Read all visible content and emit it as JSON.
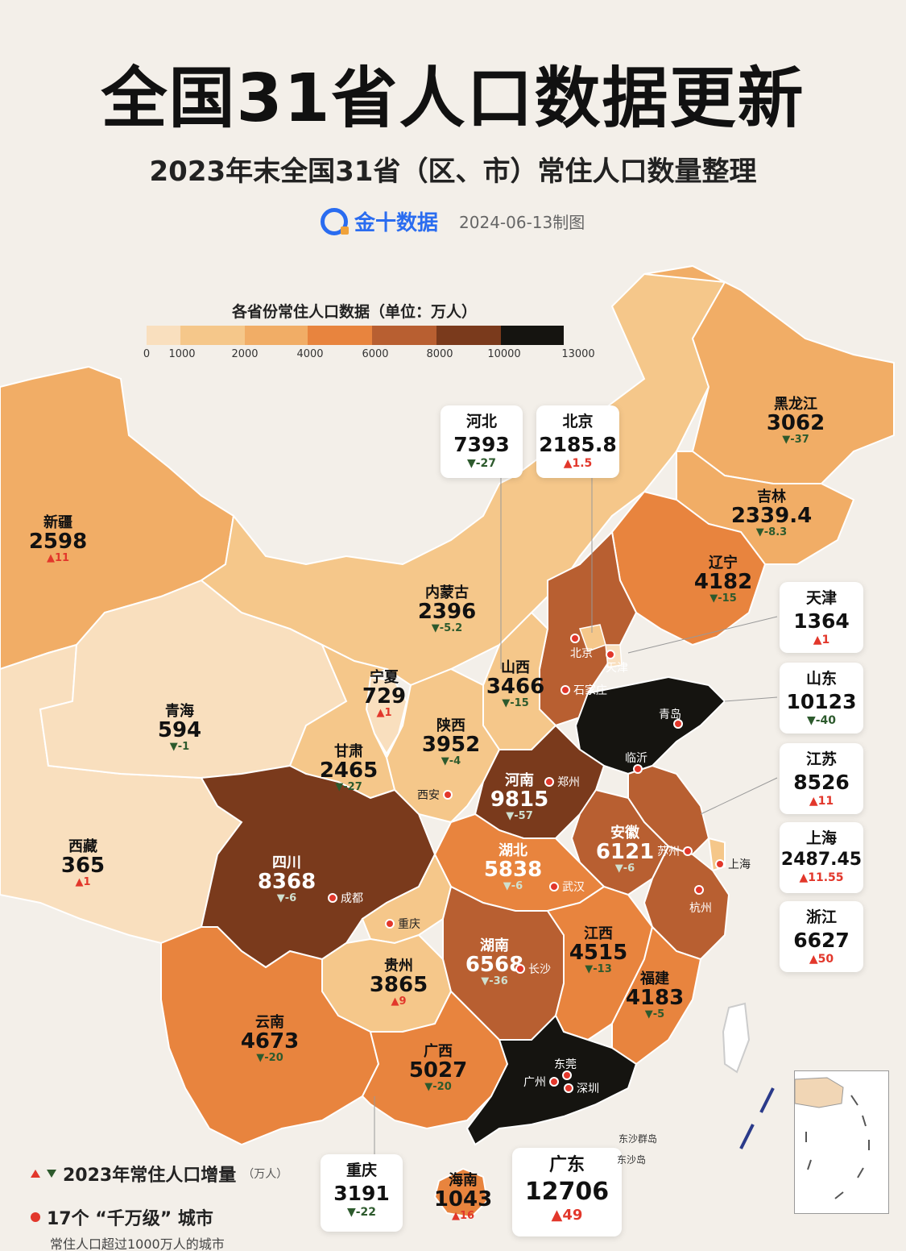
{
  "title": "全国31省人口数据更新",
  "subtitle": "2023年末全国31省（区、市）常住人口数量整理",
  "brand": {
    "name": "金十数据",
    "date": "2024-06-13制图"
  },
  "legend": {
    "title": "各省份常住人口数据（单位：万人）",
    "ticks": [
      "0",
      "1000",
      "2000",
      "4000",
      "6000",
      "8000",
      "10000",
      "13000"
    ],
    "colors": [
      "#f9dfbe",
      "#f5c78a",
      "#f1ad66",
      "#e8843e",
      "#b85f31",
      "#7a3a1c",
      "#151410"
    ]
  },
  "provinces": {
    "xinjiang": {
      "name": "新疆",
      "value": "2598",
      "change": "11",
      "dir": "up"
    },
    "xizang": {
      "name": "西藏",
      "value": "365",
      "change": "1",
      "dir": "up"
    },
    "qinghai": {
      "name": "青海",
      "value": "594",
      "change": "-1",
      "dir": "down"
    },
    "gansu": {
      "name": "甘肃",
      "value": "2465",
      "change": "-27",
      "dir": "down"
    },
    "ningxia": {
      "name": "宁夏",
      "value": "729",
      "change": "1",
      "dir": "up"
    },
    "neimenggu": {
      "name": "内蒙古",
      "value": "2396",
      "change": "-5.2",
      "dir": "down"
    },
    "heilongjiang": {
      "name": "黑龙江",
      "value": "3062",
      "change": "-37",
      "dir": "down"
    },
    "jilin": {
      "name": "吉林",
      "value": "2339.4",
      "change": "-8.3",
      "dir": "down"
    },
    "liaoning": {
      "name": "辽宁",
      "value": "4182",
      "change": "-15",
      "dir": "down"
    },
    "shanxi": {
      "name": "山西",
      "value": "3466",
      "change": "-15",
      "dir": "down"
    },
    "shaanxi": {
      "name": "陕西",
      "value": "3952",
      "change": "-4",
      "dir": "down"
    },
    "henan": {
      "name": "河南",
      "value": "9815",
      "change": "-57",
      "dir": "down"
    },
    "sichuan": {
      "name": "四川",
      "value": "8368",
      "change": "-6",
      "dir": "down"
    },
    "hubei": {
      "name": "湖北",
      "value": "5838",
      "change": "-6",
      "dir": "down"
    },
    "anhui": {
      "name": "安徽",
      "value": "6121",
      "change": "-6",
      "dir": "down"
    },
    "hunan": {
      "name": "湖南",
      "value": "6568",
      "change": "-36",
      "dir": "down"
    },
    "jiangxi": {
      "name": "江西",
      "value": "4515",
      "change": "-13",
      "dir": "down"
    },
    "fujian": {
      "name": "福建",
      "value": "4183",
      "change": "-5",
      "dir": "down"
    },
    "guizhou": {
      "name": "贵州",
      "value": "3865",
      "change": "9",
      "dir": "up"
    },
    "yunnan": {
      "name": "云南",
      "value": "4673",
      "change": "-20",
      "dir": "down"
    },
    "guangxi": {
      "name": "广西",
      "value": "5027",
      "change": "-20",
      "dir": "down"
    },
    "hainan": {
      "name": "海南",
      "value": "1043",
      "change": "16",
      "dir": "up"
    },
    "guangdong": {
      "name": "广东",
      "value": "12706",
      "change": "49",
      "dir": "up"
    },
    "chongqing": {
      "name": "重庆",
      "value": "3191",
      "change": "-22",
      "dir": "down"
    },
    "hebei": {
      "name": "河北",
      "value": "7393",
      "change": "-27",
      "dir": "down"
    },
    "beijing": {
      "name": "北京",
      "value": "2185.8",
      "change": "1.5",
      "dir": "up"
    },
    "tianjin": {
      "name": "天津",
      "value": "1364",
      "change": "1",
      "dir": "up"
    },
    "shandong": {
      "name": "山东",
      "value": "10123",
      "change": "-40",
      "dir": "down"
    },
    "jiangsu": {
      "name": "江苏",
      "value": "8526",
      "change": "11",
      "dir": "up"
    },
    "shanghai": {
      "name": "上海",
      "value": "2487.45",
      "change": "11.55",
      "dir": "up"
    },
    "zhejiang": {
      "name": "浙江",
      "value": "6627",
      "change": "50",
      "dir": "up"
    }
  },
  "cities": {
    "beijing": "北京",
    "tianjin": "天津",
    "shijiazhuang": "石家庄",
    "qingdao": "青岛",
    "linyi": "临沂",
    "zhengzhou": "郑州",
    "xian": "西安",
    "suzhou": "苏州",
    "shanghai": "上海",
    "hangzhou": "杭州",
    "wuhan": "武汉",
    "chengdu": "成都",
    "chongqing": "重庆",
    "changsha": "长沙",
    "dongguan": "东莞",
    "guangzhou": "广州",
    "shenzhen": "深圳"
  },
  "islands": {
    "dongsha": "东沙群岛",
    "dongsha_dao": "东沙岛"
  },
  "footer": {
    "increase_label": "2023年常住人口增量",
    "increase_unit": "（万人）",
    "megacity_label": "17个 “千万级” 城市",
    "megacity_note": "常住人口超过1000万人的城市"
  }
}
